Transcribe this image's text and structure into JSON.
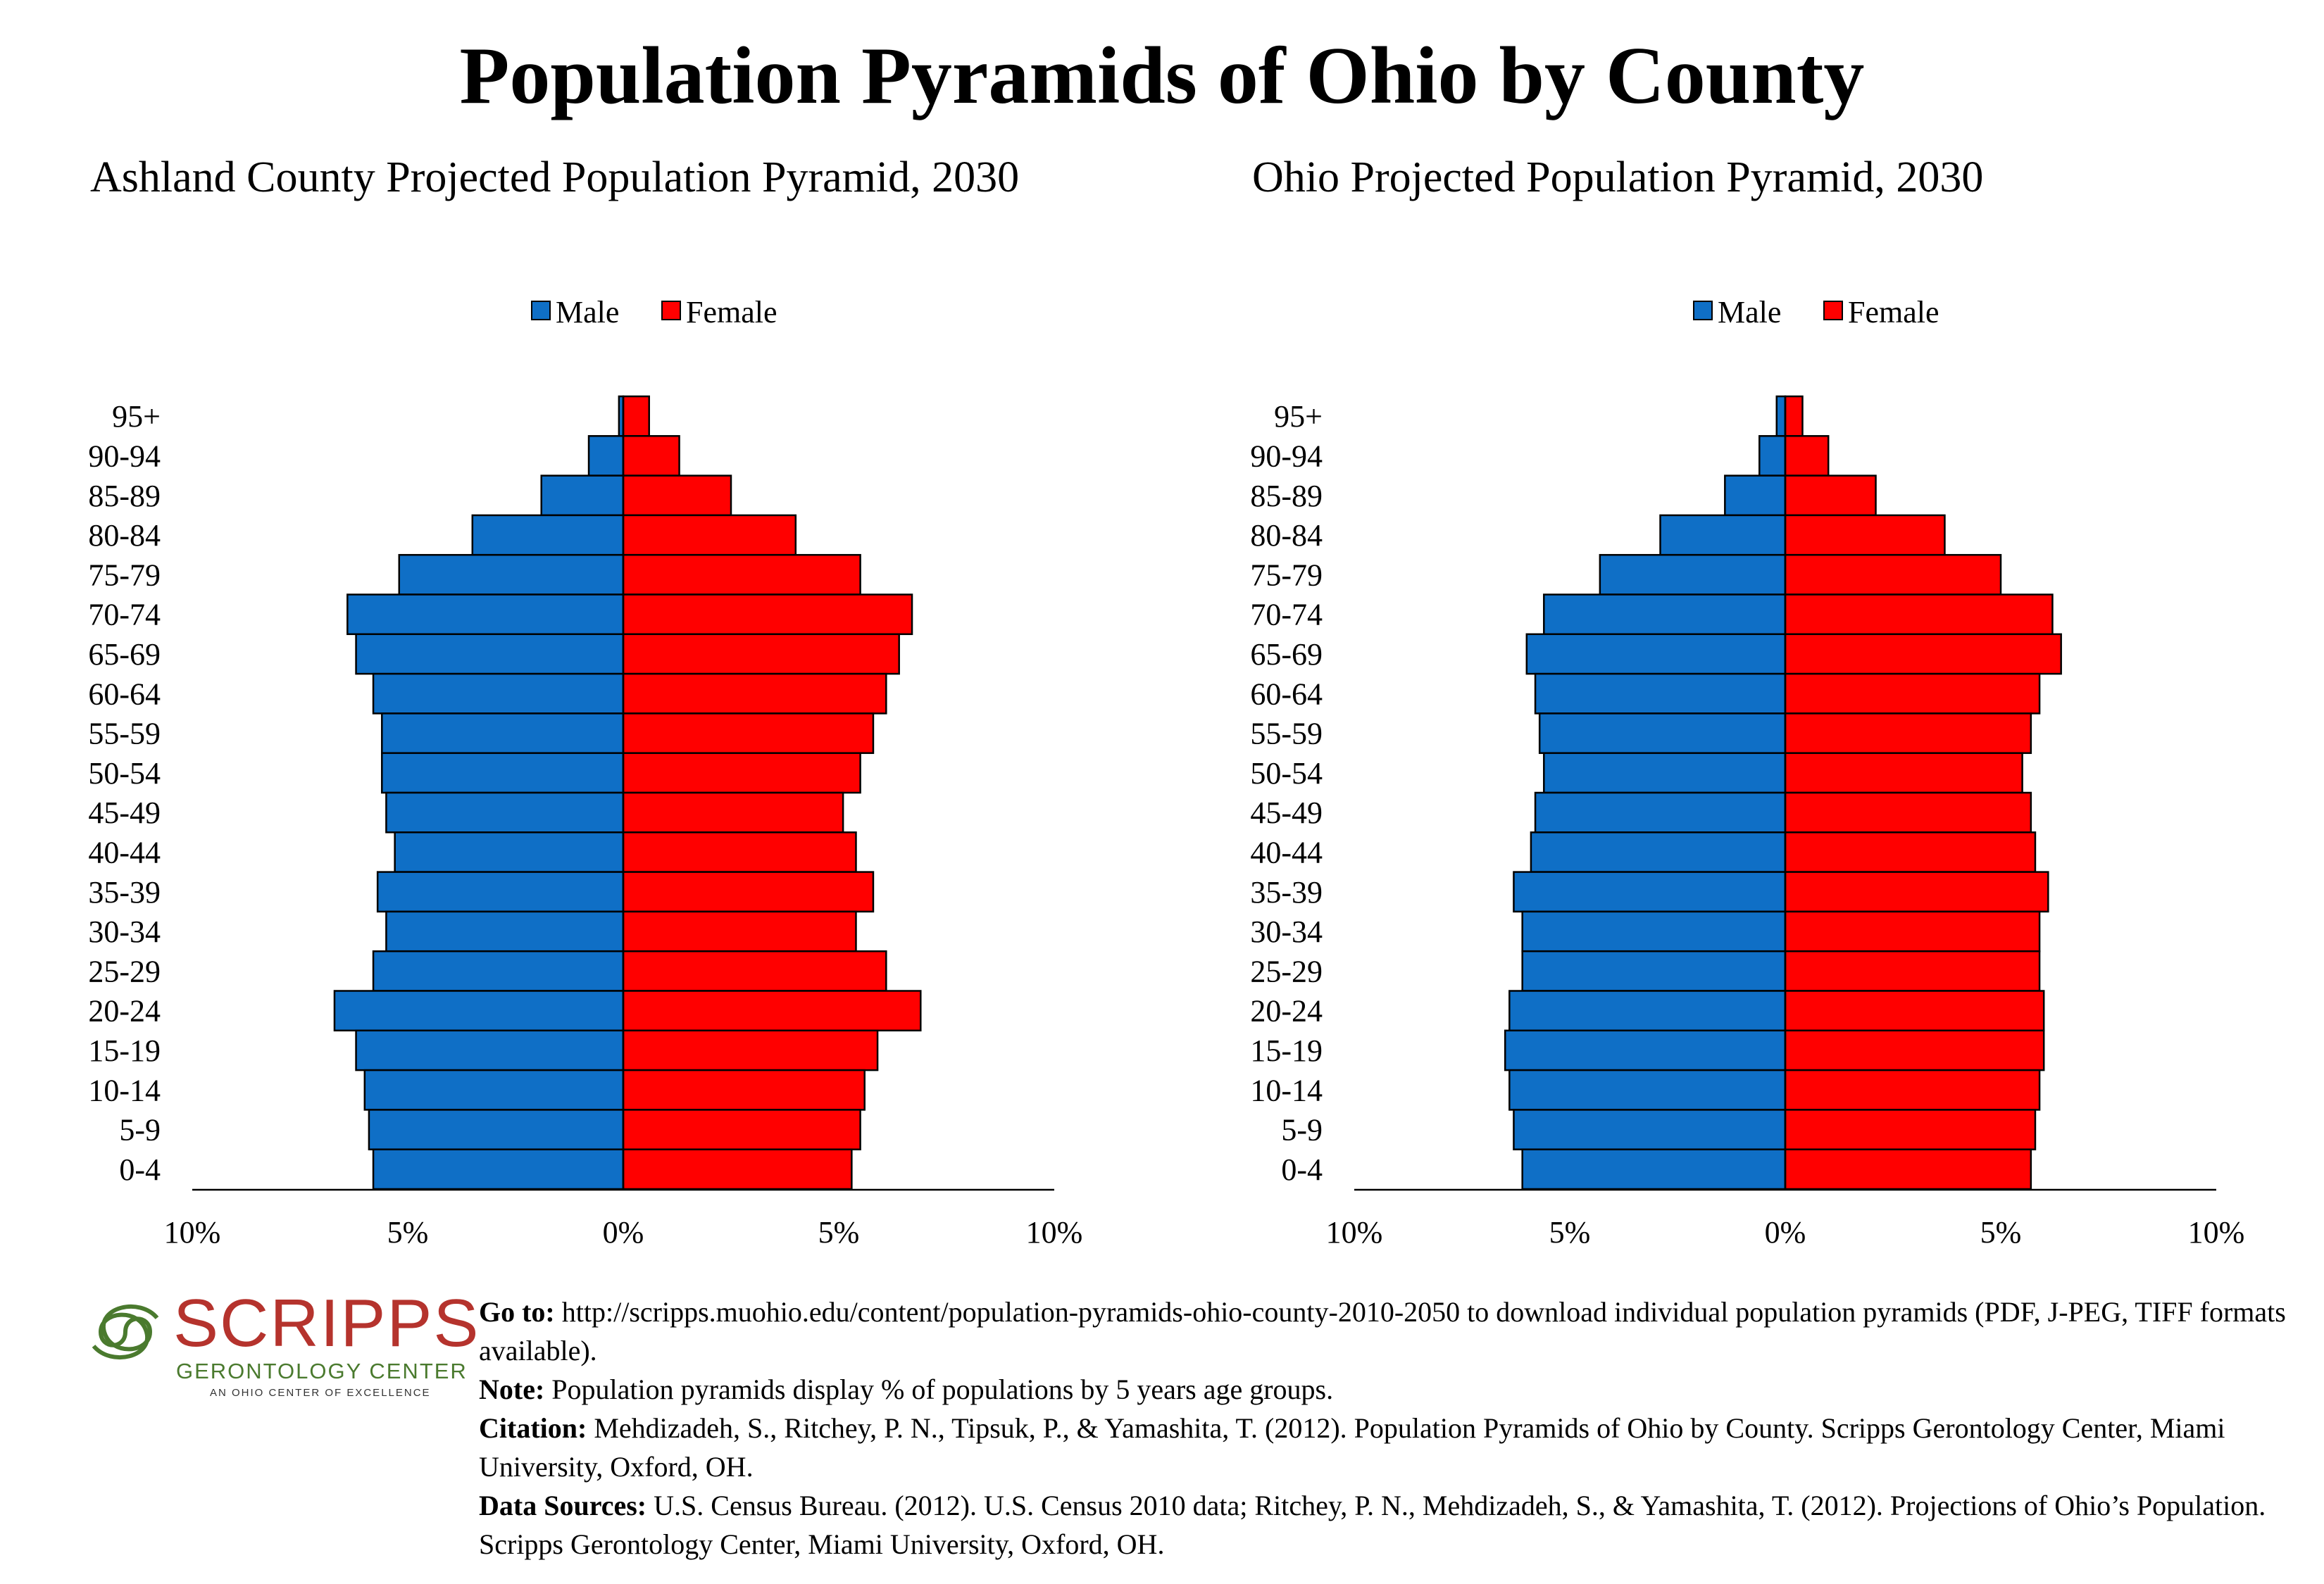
{
  "title": "Population Pyramids of Ohio by County",
  "colors": {
    "male": "#0f6fc6",
    "female": "#ff0000",
    "logo_red": "#b5332d",
    "logo_green": "#4a7a2e"
  },
  "chart_data": [
    {
      "type": "bar",
      "orientation": "horizontal-pyramid",
      "title": "Ashland County Projected Population Pyramid, 2030",
      "categories": [
        "95+",
        "90-94",
        "85-89",
        "80-84",
        "75-79",
        "70-74",
        "65-69",
        "60-64",
        "55-59",
        "50-54",
        "45-49",
        "40-44",
        "35-39",
        "30-34",
        "25-29",
        "20-24",
        "15-19",
        "10-14",
        "5-9",
        "0-4"
      ],
      "series": [
        {
          "name": "Male",
          "values": [
            0.1,
            0.8,
            1.9,
            3.5,
            5.2,
            6.4,
            6.2,
            5.8,
            5.6,
            5.6,
            5.5,
            5.3,
            5.7,
            5.5,
            5.8,
            6.7,
            6.2,
            6.0,
            5.9,
            5.8
          ]
        },
        {
          "name": "Female",
          "values": [
            0.6,
            1.3,
            2.5,
            4.0,
            5.5,
            6.7,
            6.4,
            6.1,
            5.8,
            5.5,
            5.1,
            5.4,
            5.8,
            5.4,
            6.1,
            6.9,
            5.9,
            5.6,
            5.5,
            5.3
          ]
        }
      ],
      "xlim": [
        -10,
        10
      ],
      "xticks": [
        "10%",
        "5%",
        "0%",
        "5%",
        "10%"
      ],
      "legend": "top-center"
    },
    {
      "type": "bar",
      "orientation": "horizontal-pyramid",
      "title": "Ohio Projected Population Pyramid, 2030",
      "categories": [
        "95+",
        "90-94",
        "85-89",
        "80-84",
        "75-79",
        "70-74",
        "65-69",
        "60-64",
        "55-59",
        "50-54",
        "45-49",
        "40-44",
        "35-39",
        "30-34",
        "25-29",
        "20-24",
        "15-19",
        "10-14",
        "5-9",
        "0-4"
      ],
      "series": [
        {
          "name": "Male",
          "values": [
            0.2,
            0.6,
            1.4,
            2.9,
            4.3,
            5.6,
            6.0,
            5.8,
            5.7,
            5.6,
            5.8,
            5.9,
            6.3,
            6.1,
            6.1,
            6.4,
            6.5,
            6.4,
            6.3,
            6.1
          ]
        },
        {
          "name": "Female",
          "values": [
            0.4,
            1.0,
            2.1,
            3.7,
            5.0,
            6.2,
            6.4,
            5.9,
            5.7,
            5.5,
            5.7,
            5.8,
            6.1,
            5.9,
            5.9,
            6.0,
            6.0,
            5.9,
            5.8,
            5.7
          ]
        }
      ],
      "xlim": [
        -10,
        10
      ],
      "xticks": [
        "10%",
        "5%",
        "0%",
        "5%",
        "10%"
      ],
      "legend": "top-center"
    }
  ],
  "logo": {
    "word": "SCRIPPS",
    "sub": "GERONTOLOGY CENTER",
    "tagline": "AN OHIO CENTER OF EXCELLENCE"
  },
  "notes": {
    "goto_label": "Go to:",
    "goto_text": "http://scripps.muohio.edu/content/population-pyramids-ohio-county-2010-2050 to download individual population pyramids (PDF, J-PEG, TIFF formats available).",
    "note_label": "Note:",
    "note_text": "Population pyramids display % of populations by 5 years age groups.",
    "citation_label": "Citation:",
    "citation_text": "Mehdizadeh, S., Ritchey, P. N., Tipsuk, P., & Yamashita, T. (2012). Population Pyramids of Ohio by County. Scripps Gerontology Center, Miami University, Oxford, OH.",
    "sources_label": "Data Sources:",
    "sources_text": "U.S. Census Bureau. (2012). U.S. Census 2010 data; Ritchey, P. N., Mehdizadeh, S., & Yamashita, T. (2012). Projections of Ohio’s Population. Scripps Gerontology Center, Miami University, Oxford, OH."
  }
}
